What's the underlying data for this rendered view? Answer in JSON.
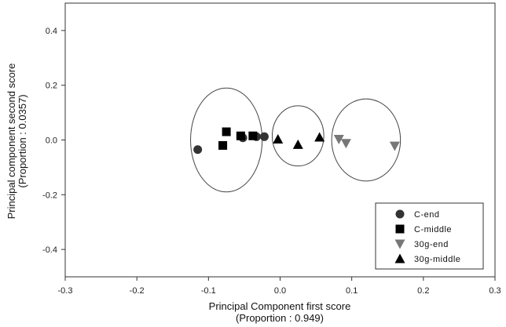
{
  "chart_data": {
    "type": "scatter",
    "xlabel": "Principal Component first score",
    "xlabel_sub": "(Proportion : 0.949)",
    "ylabel": "Principal component second score",
    "ylabel_sub": "(Proportion : 0.0357)",
    "xlim": [
      -0.3,
      0.3
    ],
    "ylim": [
      -0.5,
      0.5
    ],
    "x_ticks": [
      -0.3,
      -0.2,
      -0.1,
      0.0,
      0.1,
      0.2,
      0.3
    ],
    "x_tick_labels": [
      "-0.3",
      "-0.2",
      "-0.1",
      "0.0",
      "0.1",
      "0.2",
      "0.3"
    ],
    "y_ticks": [
      0.4,
      0.2,
      0.0,
      -0.2,
      -0.4
    ],
    "y_tick_labels": [
      "0.4",
      "0.2",
      "0.0",
      "-0.2",
      "-0.4"
    ],
    "grid": false,
    "legend_position": "bottom-right",
    "series": [
      {
        "name": "C-end",
        "marker": "circle",
        "color": "#333333",
        "points": [
          [
            -0.115,
            -0.035
          ],
          [
            -0.052,
            0.008
          ],
          [
            -0.033,
            0.012
          ],
          [
            -0.022,
            0.012
          ]
        ]
      },
      {
        "name": "C-middle",
        "marker": "square",
        "color": "#000000",
        "points": [
          [
            -0.08,
            -0.02
          ],
          [
            -0.075,
            0.03
          ],
          [
            -0.055,
            0.015
          ],
          [
            -0.038,
            0.015
          ]
        ]
      },
      {
        "name": "30g-end",
        "marker": "triangle-down",
        "color": "#777777",
        "points": [
          [
            0.082,
            0.003
          ],
          [
            0.092,
            -0.012
          ],
          [
            0.16,
            -0.022
          ]
        ]
      },
      {
        "name": "30g-middle",
        "marker": "triangle-up",
        "color": "#000000",
        "points": [
          [
            -0.003,
            0.003
          ],
          [
            0.025,
            -0.017
          ],
          [
            0.055,
            0.01
          ]
        ]
      }
    ],
    "ellipses": [
      {
        "cx": -0.075,
        "cy": 0.0,
        "rx": 0.05,
        "ry": 0.19
      },
      {
        "cx": 0.025,
        "cy": 0.015,
        "rx": 0.036,
        "ry": 0.11
      },
      {
        "cx": 0.12,
        "cy": 0.0,
        "rx": 0.048,
        "ry": 0.15
      }
    ]
  }
}
